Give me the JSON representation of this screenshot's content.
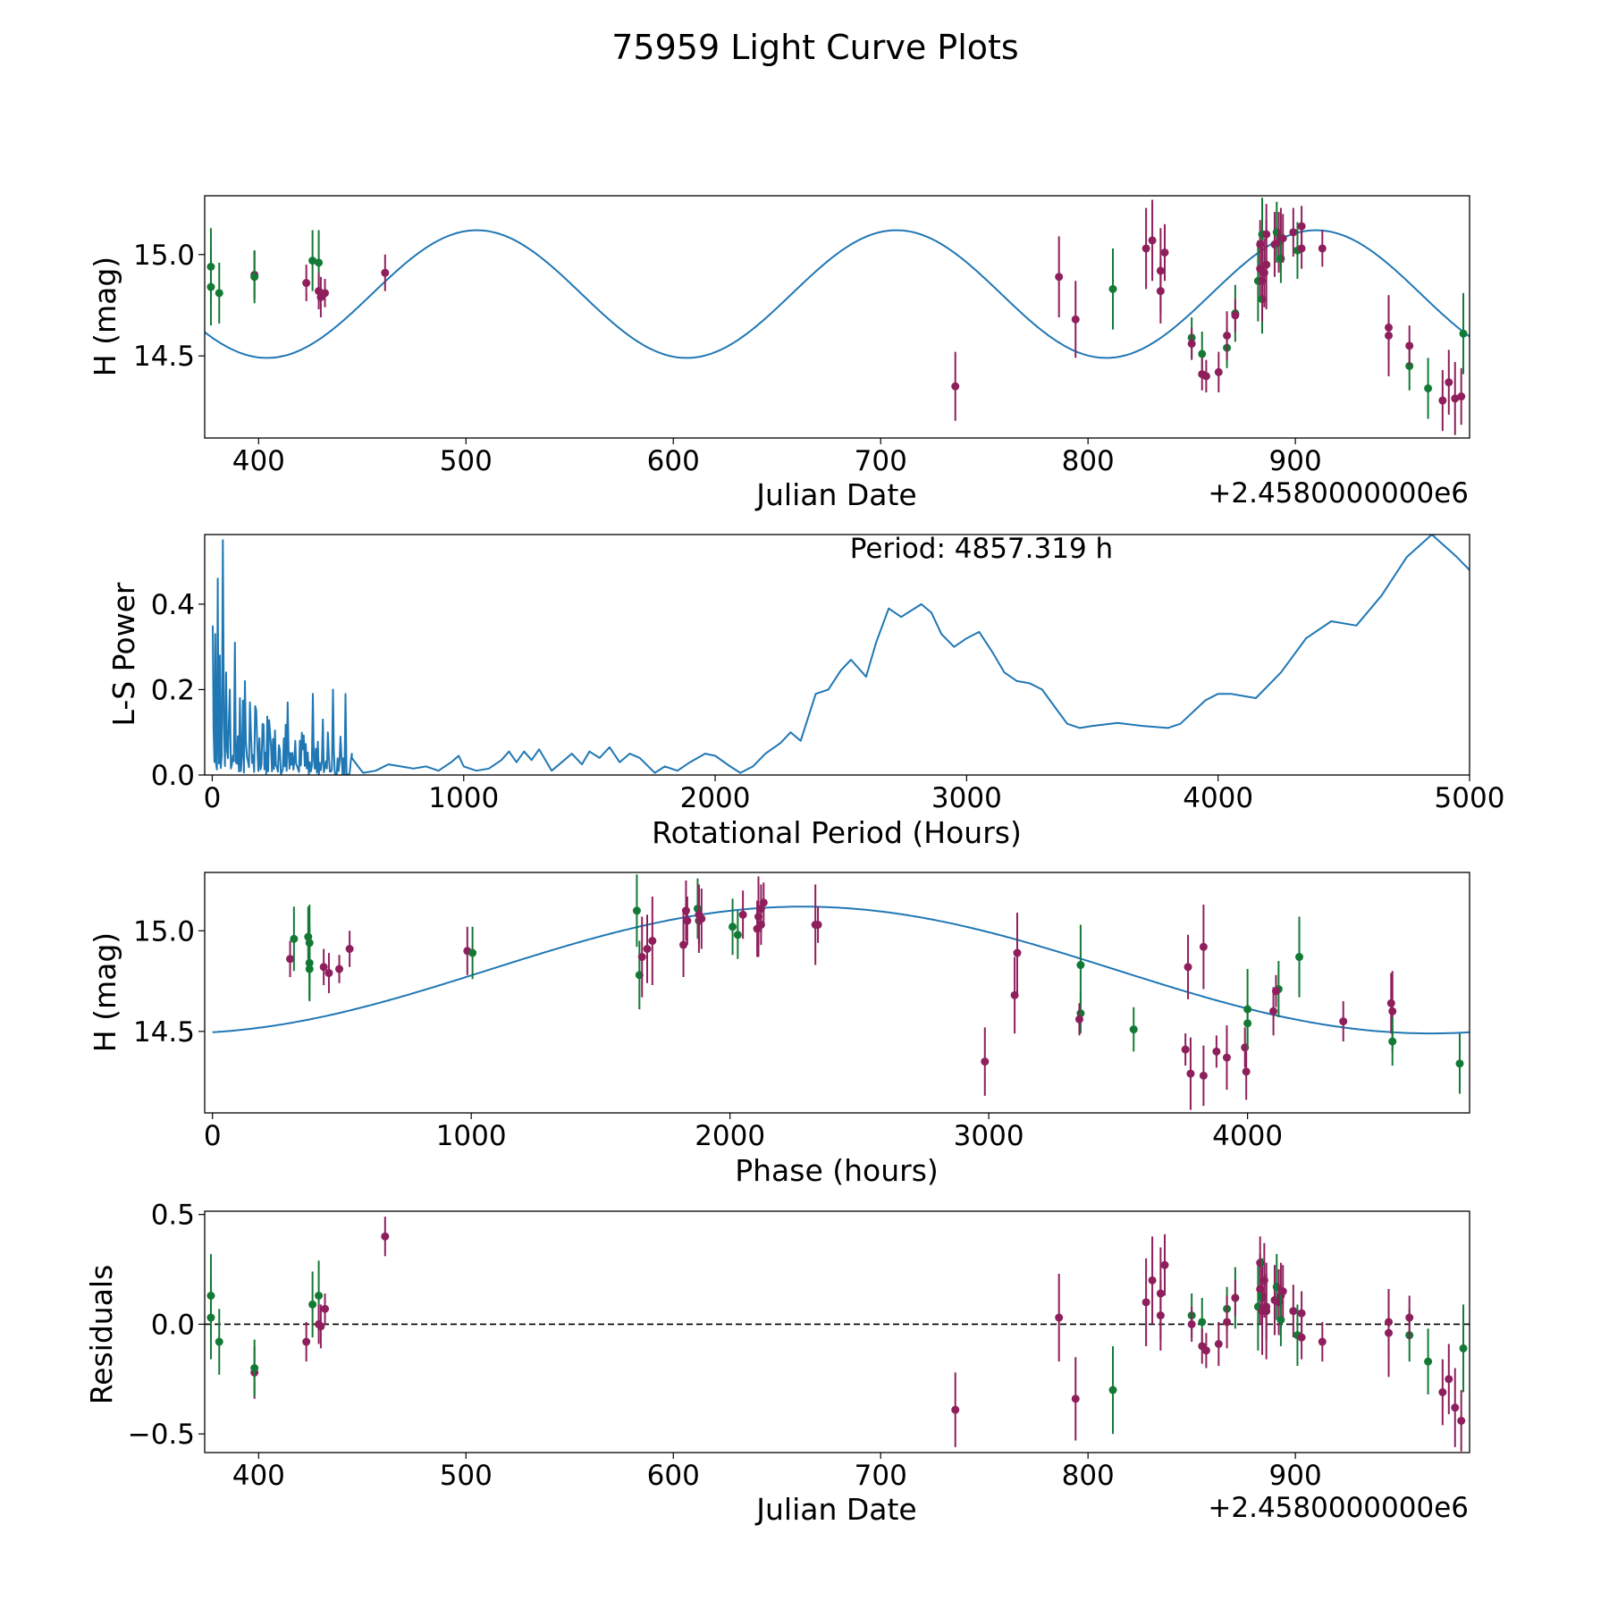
{
  "figure_title": "75959 Light Curve Plots",
  "colors": {
    "curve": "#1f77b4",
    "series_a": "#8e1f5c",
    "series_b": "#137a35",
    "frame": "#000000"
  },
  "chart_data": [
    {
      "id": "lightcurve",
      "type": "scatter",
      "xlabel": "Julian Date",
      "ylabel": "H (mag)",
      "x_offset_label": "+2.4580000000e6",
      "xlim": [
        374,
        984
      ],
      "ylim": [
        14.095,
        15.29
      ],
      "xticks": [
        {
          "v": 400,
          "label": "400"
        },
        {
          "v": 500,
          "label": "500"
        },
        {
          "v": 600,
          "label": "600"
        },
        {
          "v": 700,
          "label": "700"
        },
        {
          "v": 800,
          "label": "800"
        },
        {
          "v": 900,
          "label": "900"
        }
      ],
      "yticks": [
        {
          "v": 14.5,
          "label": "14.5"
        },
        {
          "v": 15.0,
          "label": "15.0"
        }
      ],
      "model": {
        "mean": 14.805,
        "amp": 0.315,
        "period_days": 202.39,
        "peak_x": 910
      }
    },
    {
      "id": "periodogram",
      "type": "line",
      "xlabel": "Rotational Period (Hours)",
      "ylabel": "L-S Power",
      "annotation": "Period: 4857.319 h",
      "xlim": [
        -30,
        5000
      ],
      "ylim": [
        0,
        0.563
      ],
      "xticks": [
        {
          "v": 0,
          "label": "0"
        },
        {
          "v": 1000,
          "label": "1000"
        },
        {
          "v": 2000,
          "label": "2000"
        },
        {
          "v": 3000,
          "label": "3000"
        },
        {
          "v": 4000,
          "label": "4000"
        },
        {
          "v": 5000,
          "label": "5000"
        }
      ],
      "yticks": [
        {
          "v": 0.0,
          "label": "0.0"
        },
        {
          "v": 0.2,
          "label": "0.2"
        },
        {
          "v": 0.4,
          "label": "0.4"
        }
      ],
      "spikes": [
        [
          2,
          0.35
        ],
        [
          12,
          0.33
        ],
        [
          22,
          0.46
        ],
        [
          30,
          0.28
        ],
        [
          42,
          0.55
        ],
        [
          55,
          0.24
        ],
        [
          70,
          0.2
        ],
        [
          90,
          0.31
        ],
        [
          110,
          0.18
        ],
        [
          130,
          0.22
        ],
        [
          150,
          0.17
        ],
        [
          175,
          0.15
        ],
        [
          200,
          0.12
        ],
        [
          230,
          0.1
        ],
        [
          265,
          0.07
        ],
        [
          300,
          0.17
        ],
        [
          330,
          0.08
        ],
        [
          360,
          0.06
        ],
        [
          400,
          0.19
        ],
        [
          440,
          0.13
        ],
        [
          460,
          0.1
        ],
        [
          480,
          0.2
        ],
        [
          510,
          0.09
        ],
        [
          530,
          0.19
        ],
        [
          555,
          0.05
        ]
      ],
      "smooth": [
        [
          555,
          0.04
        ],
        [
          580,
          0.02
        ],
        [
          600,
          0.005
        ],
        [
          650,
          0.01
        ],
        [
          700,
          0.025
        ],
        [
          750,
          0.02
        ],
        [
          800,
          0.015
        ],
        [
          850,
          0.02
        ],
        [
          900,
          0.01
        ],
        [
          950,
          0.03
        ],
        [
          980,
          0.045
        ],
        [
          1000,
          0.02
        ],
        [
          1050,
          0.01
        ],
        [
          1100,
          0.015
        ],
        [
          1150,
          0.035
        ],
        [
          1180,
          0.055
        ],
        [
          1210,
          0.03
        ],
        [
          1240,
          0.055
        ],
        [
          1270,
          0.035
        ],
        [
          1300,
          0.06
        ],
        [
          1350,
          0.01
        ],
        [
          1400,
          0.035
        ],
        [
          1430,
          0.05
        ],
        [
          1470,
          0.025
        ],
        [
          1500,
          0.055
        ],
        [
          1540,
          0.04
        ],
        [
          1580,
          0.065
        ],
        [
          1620,
          0.03
        ],
        [
          1660,
          0.05
        ],
        [
          1700,
          0.04
        ],
        [
          1760,
          0.005
        ],
        [
          1800,
          0.02
        ],
        [
          1850,
          0.01
        ],
        [
          1900,
          0.03
        ],
        [
          1960,
          0.05
        ],
        [
          2000,
          0.045
        ],
        [
          2060,
          0.02
        ],
        [
          2100,
          0.005
        ],
        [
          2150,
          0.02
        ],
        [
          2200,
          0.05
        ],
        [
          2260,
          0.075
        ],
        [
          2300,
          0.1
        ],
        [
          2340,
          0.08
        ],
        [
          2400,
          0.19
        ],
        [
          2450,
          0.2
        ],
        [
          2500,
          0.245
        ],
        [
          2540,
          0.27
        ],
        [
          2600,
          0.23
        ],
        [
          2640,
          0.31
        ],
        [
          2690,
          0.39
        ],
        [
          2740,
          0.37
        ],
        [
          2780,
          0.385
        ],
        [
          2820,
          0.4
        ],
        [
          2860,
          0.38
        ],
        [
          2900,
          0.33
        ],
        [
          2950,
          0.3
        ],
        [
          3000,
          0.32
        ],
        [
          3050,
          0.335
        ],
        [
          3100,
          0.29
        ],
        [
          3150,
          0.24
        ],
        [
          3200,
          0.22
        ],
        [
          3250,
          0.215
        ],
        [
          3300,
          0.2
        ],
        [
          3350,
          0.16
        ],
        [
          3400,
          0.12
        ],
        [
          3450,
          0.11
        ],
        [
          3500,
          0.115
        ],
        [
          3600,
          0.122
        ],
        [
          3700,
          0.115
        ],
        [
          3800,
          0.11
        ],
        [
          3850,
          0.12
        ],
        [
          3950,
          0.175
        ],
        [
          4000,
          0.19
        ],
        [
          4050,
          0.19
        ],
        [
          4150,
          0.18
        ],
        [
          4250,
          0.24
        ],
        [
          4350,
          0.32
        ],
        [
          4450,
          0.36
        ],
        [
          4550,
          0.35
        ],
        [
          4650,
          0.42
        ],
        [
          4750,
          0.51
        ],
        [
          4850,
          0.563
        ],
        [
          4950,
          0.51
        ],
        [
          5000,
          0.48
        ]
      ]
    },
    {
      "id": "phased",
      "type": "scatter",
      "xlabel": "Phase (hours)",
      "ylabel": "H (mag)",
      "xlim": [
        -30,
        4858
      ],
      "ylim": [
        14.095,
        15.29
      ],
      "xticks": [
        {
          "v": 0,
          "label": "0"
        },
        {
          "v": 1000,
          "label": "1000"
        },
        {
          "v": 2000,
          "label": "2000"
        },
        {
          "v": 3000,
          "label": "3000"
        },
        {
          "v": 4000,
          "label": "4000"
        }
      ],
      "yticks": [
        {
          "v": 14.5,
          "label": "14.5"
        },
        {
          "v": 15.0,
          "label": "15.0"
        }
      ],
      "model": {
        "mean": 14.805,
        "amp": 0.315,
        "period_hours": 4857.319,
        "peak_x": 2280
      }
    },
    {
      "id": "residuals",
      "type": "scatter",
      "xlabel": "Julian Date",
      "ylabel": "Residuals",
      "x_offset_label": "+2.4580000000e6",
      "xlim": [
        374,
        984
      ],
      "ylim": [
        -0.585,
        0.515
      ],
      "xticks": [
        {
          "v": 400,
          "label": "400"
        },
        {
          "v": 500,
          "label": "500"
        },
        {
          "v": 600,
          "label": "600"
        },
        {
          "v": 700,
          "label": "700"
        },
        {
          "v": 800,
          "label": "800"
        },
        {
          "v": 900,
          "label": "900"
        }
      ],
      "yticks": [
        {
          "v": 0.5,
          "label": "0.5"
        },
        {
          "v": 0.0,
          "label": "0.0"
        },
        {
          "v": -0.5,
          "label": "−0.5"
        }
      ],
      "zero_line": 0.0
    }
  ],
  "observations": [
    {
      "jd": 377,
      "phase": 375,
      "mag": 14.94,
      "err": 0.19,
      "resid": 0.13,
      "s": "g"
    },
    {
      "jd": 377,
      "phase": 375,
      "mag": 14.84,
      "err": 0.19,
      "resid": 0.03,
      "s": "g"
    },
    {
      "jd": 381,
      "phase": 375,
      "mag": 14.81,
      "err": 0.15,
      "resid": -0.08,
      "s": "g"
    },
    {
      "jd": 398,
      "phase": 985,
      "mag": 14.9,
      "err": 0.12,
      "resid": -0.22,
      "s": "p"
    },
    {
      "jd": 398,
      "phase": 1005,
      "mag": 14.89,
      "err": 0.13,
      "resid": -0.2,
      "s": "g"
    },
    {
      "jd": 423,
      "phase": 300,
      "mag": 14.86,
      "err": 0.09,
      "resid": -0.08,
      "s": "p"
    },
    {
      "jd": 426,
      "phase": 370,
      "mag": 14.97,
      "err": 0.15,
      "resid": 0.09,
      "s": "g"
    },
    {
      "jd": 429,
      "phase": 315,
      "mag": 14.96,
      "err": 0.16,
      "resid": 0.13,
      "s": "g"
    },
    {
      "jd": 429,
      "phase": 430,
      "mag": 14.82,
      "err": 0.09,
      "resid": 0.0,
      "s": "p"
    },
    {
      "jd": 430,
      "phase": 450,
      "mag": 14.79,
      "err": 0.1,
      "resid": -0.01,
      "s": "p"
    },
    {
      "jd": 432,
      "phase": 490,
      "mag": 14.81,
      "err": 0.07,
      "resid": 0.07,
      "s": "p"
    },
    {
      "jd": 461,
      "phase": 530,
      "mag": 14.91,
      "err": 0.09,
      "resid": 0.4,
      "s": "p"
    },
    {
      "jd": 736,
      "phase": 2985,
      "mag": 14.35,
      "err": 0.17,
      "resid": -0.39,
      "s": "p"
    },
    {
      "jd": 786,
      "phase": 3110,
      "mag": 14.89,
      "err": 0.2,
      "resid": 0.03,
      "s": "p"
    },
    {
      "jd": 794,
      "phase": 3100,
      "mag": 14.68,
      "err": 0.19,
      "resid": -0.34,
      "s": "p"
    },
    {
      "jd": 812,
      "phase": 3355,
      "mag": 14.83,
      "err": 0.2,
      "resid": -0.3,
      "s": "g"
    },
    {
      "jd": 828,
      "phase": 2330,
      "mag": 15.03,
      "err": 0.2,
      "resid": 0.1,
      "s": "p"
    },
    {
      "jd": 831,
      "phase": 2110,
      "mag": 15.07,
      "err": 0.2,
      "resid": 0.2,
      "s": "p"
    },
    {
      "jd": 835,
      "phase": 3770,
      "mag": 14.82,
      "err": 0.16,
      "resid": 0.04,
      "s": "p"
    },
    {
      "jd": 835,
      "phase": 3830,
      "mag": 14.92,
      "err": 0.21,
      "resid": 0.14,
      "s": "p"
    },
    {
      "jd": 837,
      "phase": 2105,
      "mag": 15.01,
      "err": 0.14,
      "resid": 0.27,
      "s": "p"
    },
    {
      "jd": 850,
      "phase": 3355,
      "mag": 14.59,
      "err": 0.1,
      "resid": 0.04,
      "s": "g"
    },
    {
      "jd": 850,
      "phase": 3350,
      "mag": 14.56,
      "err": 0.08,
      "resid": 0.0,
      "s": "p"
    },
    {
      "jd": 855,
      "phase": 3560,
      "mag": 14.51,
      "err": 0.11,
      "resid": 0.01,
      "s": "g"
    },
    {
      "jd": 855,
      "phase": 3760,
      "mag": 14.41,
      "err": 0.08,
      "resid": -0.1,
      "s": "p"
    },
    {
      "jd": 857,
      "phase": 3880,
      "mag": 14.4,
      "err": 0.08,
      "resid": -0.12,
      "s": "p"
    },
    {
      "jd": 863,
      "phase": 3990,
      "mag": 14.42,
      "err": 0.1,
      "resid": -0.09,
      "s": "p"
    },
    {
      "jd": 867,
      "phase": 4000,
      "mag": 14.54,
      "err": 0.1,
      "resid": 0.07,
      "s": "g"
    },
    {
      "jd": 867,
      "phase": 4100,
      "mag": 14.6,
      "err": 0.12,
      "resid": 0.01,
      "s": "p"
    },
    {
      "jd": 871,
      "phase": 4120,
      "mag": 14.71,
      "err": 0.14,
      "resid": 0.12,
      "s": "g"
    },
    {
      "jd": 871,
      "phase": 4110,
      "mag": 14.7,
      "err": 0.08,
      "resid": 0.12,
      "s": "p"
    },
    {
      "jd": 882,
      "phase": 4200,
      "mag": 14.87,
      "err": 0.2,
      "resid": 0.08,
      "s": "g"
    },
    {
      "jd": 883,
      "phase": 1820,
      "mag": 14.93,
      "err": 0.16,
      "resid": 0.16,
      "s": "p"
    },
    {
      "jd": 883,
      "phase": 1835,
      "mag": 15.05,
      "err": 0.12,
      "resid": 0.28,
      "s": "p"
    },
    {
      "jd": 884,
      "phase": 1640,
      "mag": 15.1,
      "err": 0.18,
      "resid": 0.12,
      "s": "g"
    },
    {
      "jd": 884,
      "phase": 1650,
      "mag": 14.78,
      "err": 0.17,
      "resid": 0.13,
      "s": "g"
    },
    {
      "jd": 884,
      "phase": 1660,
      "mag": 14.87,
      "err": 0.2,
      "resid": 0.06,
      "s": "p"
    },
    {
      "jd": 885,
      "phase": 1680,
      "mag": 14.91,
      "err": 0.17,
      "resid": 0.2,
      "s": "p"
    },
    {
      "jd": 886,
      "phase": 1700,
      "mag": 14.95,
      "err": 0.22,
      "resid": 0.06,
      "s": "p"
    },
    {
      "jd": 886,
      "phase": 1830,
      "mag": 15.1,
      "err": 0.15,
      "resid": 0.08,
      "s": "p"
    },
    {
      "jd": 890,
      "phase": 1880,
      "mag": 15.05,
      "err": 0.16,
      "resid": 0.11,
      "s": "p"
    },
    {
      "jd": 891,
      "phase": 1875,
      "mag": 15.11,
      "err": 0.15,
      "resid": 0.17,
      "s": "g"
    },
    {
      "jd": 892,
      "phase": 1890,
      "mag": 15.06,
      "err": 0.15,
      "resid": 0.1,
      "s": "p"
    },
    {
      "jd": 893,
      "phase": 1880,
      "mag": 15.08,
      "err": 0.15,
      "resid": 0.13,
      "s": "p"
    },
    {
      "jd": 893,
      "phase": 2030,
      "mag": 14.98,
      "err": 0.12,
      "resid": 0.02,
      "s": "g"
    },
    {
      "jd": 894,
      "phase": 2050,
      "mag": 15.08,
      "err": 0.12,
      "resid": 0.15,
      "s": "p"
    },
    {
      "jd": 899,
      "phase": 2120,
      "mag": 15.11,
      "err": 0.12,
      "resid": 0.06,
      "s": "p"
    },
    {
      "jd": 901,
      "phase": 2010,
      "mag": 15.02,
      "err": 0.14,
      "resid": -0.05,
      "s": "g"
    },
    {
      "jd": 903,
      "phase": 2130,
      "mag": 15.14,
      "err": 0.1,
      "resid": 0.05,
      "s": "p"
    },
    {
      "jd": 903,
      "phase": 2120,
      "mag": 15.03,
      "err": 0.1,
      "resid": -0.06,
      "s": "p"
    },
    {
      "jd": 913,
      "phase": 2340,
      "mag": 15.03,
      "err": 0.09,
      "resid": -0.08,
      "s": "p"
    },
    {
      "jd": 945,
      "phase": 4560,
      "mag": 14.6,
      "err": 0.2,
      "resid": -0.04,
      "s": "p"
    },
    {
      "jd": 945,
      "phase": 4555,
      "mag": 14.64,
      "err": 0.15,
      "resid": 0.01,
      "s": "p"
    },
    {
      "jd": 955,
      "phase": 4560,
      "mag": 14.45,
      "err": 0.12,
      "resid": -0.05,
      "s": "g"
    },
    {
      "jd": 955,
      "phase": 4370,
      "mag": 14.55,
      "err": 0.1,
      "resid": 0.03,
      "s": "p"
    },
    {
      "jd": 964,
      "phase": 4820,
      "mag": 14.34,
      "err": 0.15,
      "resid": -0.17,
      "s": "g"
    },
    {
      "jd": 971,
      "phase": 3830,
      "mag": 14.28,
      "err": 0.15,
      "resid": -0.31,
      "s": "p"
    },
    {
      "jd": 974,
      "phase": 3920,
      "mag": 14.37,
      "err": 0.16,
      "resid": -0.25,
      "s": "p"
    },
    {
      "jd": 977,
      "phase": 3780,
      "mag": 14.29,
      "err": 0.18,
      "resid": -0.38,
      "s": "p"
    },
    {
      "jd": 980,
      "phase": 3995,
      "mag": 14.3,
      "err": 0.14,
      "resid": -0.44,
      "s": "p"
    },
    {
      "jd": 981,
      "phase": 4000,
      "mag": 14.61,
      "err": 0.2,
      "resid": -0.11,
      "s": "g"
    }
  ]
}
